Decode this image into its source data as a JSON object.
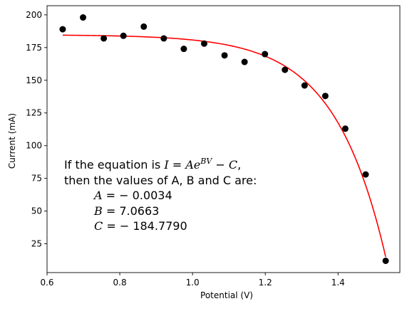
{
  "chart_data": {
    "type": "scatter",
    "title": "",
    "xlabel": "Potential (V)",
    "ylabel": "Current (mA)",
    "xlim": [
      0.6,
      1.57
    ],
    "ylim": [
      3,
      207
    ],
    "xticks": [
      0.6,
      0.8,
      1.0,
      1.2,
      1.4
    ],
    "xtick_labels": [
      "0.6",
      "0.8",
      "1.0",
      "1.2",
      "1.4"
    ],
    "yticks": [
      25,
      50,
      75,
      100,
      125,
      150,
      175,
      200
    ],
    "ytick_labels": [
      "25",
      "50",
      "75",
      "100",
      "125",
      "150",
      "175",
      "200"
    ],
    "grid": false,
    "legend": "none",
    "points": {
      "color": "#000000",
      "x": [
        0.643,
        0.699,
        0.756,
        0.81,
        0.866,
        0.921,
        0.976,
        1.032,
        1.088,
        1.143,
        1.199,
        1.254,
        1.308,
        1.365,
        1.42,
        1.476,
        1.531
      ],
      "y": [
        189,
        198,
        182,
        184,
        191,
        182,
        174,
        178,
        169,
        164,
        170,
        158,
        146,
        138,
        113,
        78,
        12
      ]
    },
    "fit": {
      "color": "#ff0000",
      "equation": "I = A*exp(B*V) - C",
      "A": -0.0034,
      "B": 7.0663,
      "C": -184.779,
      "x_range": [
        0.643,
        1.531
      ]
    },
    "annotation": {
      "line1_prefix": "If the equation is ",
      "line1_I": "I",
      "line1_eq": " = ",
      "line1_A": "Ae",
      "line1_exp": "BV",
      "line1_minus": " − ",
      "line1_C": "C",
      "line1_suffix": ",",
      "line2": "then the values of A, B and C are:",
      "a_sym": "A",
      "a_val": " = − 0.0034",
      "b_sym": "B",
      "b_val": " = 7.0663",
      "c_sym": "C",
      "c_val": " = − 184.7790"
    }
  }
}
